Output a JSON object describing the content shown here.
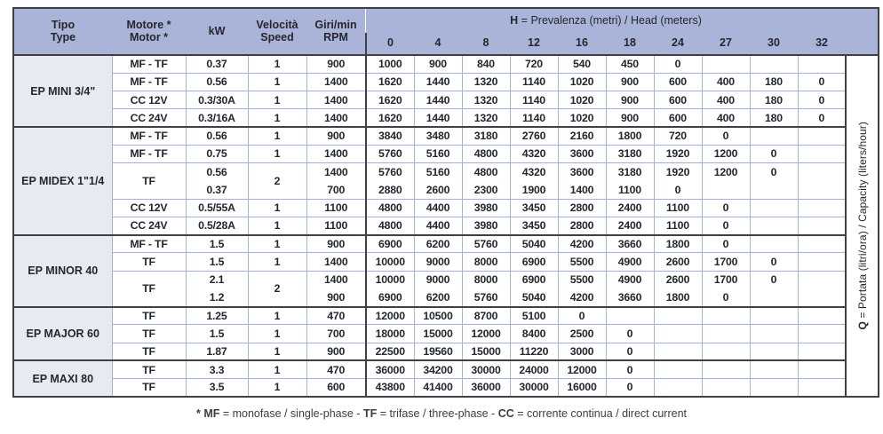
{
  "header": {
    "tipo": [
      "Tipo",
      "Type"
    ],
    "motore": [
      "Motore *",
      "Motor *"
    ],
    "kw": "kW",
    "velocita": [
      "Velocità",
      "Speed"
    ],
    "giri": [
      "Giri/min",
      "RPM"
    ],
    "h_bold": "H",
    "h_rest": " = Prevalenza (metri) / Head (meters)",
    "h_cols": [
      "0",
      "4",
      "8",
      "12",
      "16",
      "18",
      "24",
      "27",
      "30",
      "32"
    ]
  },
  "capacity_label": {
    "bold": "Q",
    "rest": " = Portata (litri/ora) / Capacity (liters/hour)"
  },
  "footnote": [
    {
      "text": "* MF",
      "bold": true
    },
    {
      "text": " = monofase / single-phase - ",
      "bold": false
    },
    {
      "text": "TF",
      "bold": true
    },
    {
      "text": " = trifase / three-phase - ",
      "bold": false
    },
    {
      "text": "CC",
      "bold": true
    },
    {
      "text": " = corrente continua / direct current",
      "bold": false
    }
  ],
  "colors": {
    "header_bg": "#a9b4d8",
    "type_bg": "#e9e9f2",
    "grid_light": "#a4b2d6",
    "grid_dark": "#3f3f48"
  },
  "sections": [
    {
      "name": "EP MINI 3/4\"",
      "rows": [
        {
          "motor": "MF - TF",
          "kw": "0.37",
          "speed": "1",
          "rpm": "900",
          "q": [
            "1000",
            "900",
            "840",
            "720",
            "540",
            "450",
            "0",
            "",
            "",
            ""
          ]
        },
        {
          "motor": "MF - TF",
          "kw": "0.56",
          "speed": "1",
          "rpm": "1400",
          "q": [
            "1620",
            "1440",
            "1320",
            "1140",
            "1020",
            "900",
            "600",
            "400",
            "180",
            "0"
          ]
        },
        {
          "motor": "CC 12V",
          "kw": "0.3/30A",
          "speed": "1",
          "rpm": "1400",
          "q": [
            "1620",
            "1440",
            "1320",
            "1140",
            "1020",
            "900",
            "600",
            "400",
            "180",
            "0"
          ]
        },
        {
          "motor": "CC 24V",
          "kw": "0.3/16A",
          "speed": "1",
          "rpm": "1400",
          "q": [
            "1620",
            "1440",
            "1320",
            "1140",
            "1020",
            "900",
            "600",
            "400",
            "180",
            "0"
          ]
        }
      ]
    },
    {
      "name": "EP MIDEX 1\"1/4",
      "rows": [
        {
          "motor": "MF - TF",
          "kw": "0.56",
          "speed": "1",
          "rpm": "900",
          "q": [
            "3840",
            "3480",
            "3180",
            "2760",
            "2160",
            "1800",
            "720",
            "0",
            "",
            ""
          ]
        },
        {
          "motor": "MF - TF",
          "kw": "0.75",
          "speed": "1",
          "rpm": "1400",
          "q": [
            "5760",
            "5160",
            "4800",
            "4320",
            "3600",
            "3180",
            "1920",
            "1200",
            "0",
            ""
          ]
        },
        {
          "motor": "TF",
          "speed": "2",
          "sub": [
            {
              "kw": "0.56",
              "rpm": "1400",
              "q": [
                "5760",
                "5160",
                "4800",
                "4320",
                "3600",
                "3180",
                "1920",
                "1200",
                "0",
                ""
              ]
            },
            {
              "kw": "0.37",
              "rpm": "700",
              "q": [
                "2880",
                "2600",
                "2300",
                "1900",
                "1400",
                "1100",
                "0",
                "",
                "",
                ""
              ]
            }
          ]
        },
        {
          "motor": "CC 12V",
          "kw": "0.5/55A",
          "speed": "1",
          "rpm": "1100",
          "q": [
            "4800",
            "4400",
            "3980",
            "3450",
            "2800",
            "2400",
            "1100",
            "0",
            "",
            ""
          ]
        },
        {
          "motor": "CC 24V",
          "kw": "0.5/28A",
          "speed": "1",
          "rpm": "1100",
          "q": [
            "4800",
            "4400",
            "3980",
            "3450",
            "2800",
            "2400",
            "1100",
            "0",
            "",
            ""
          ]
        }
      ]
    },
    {
      "name": "EP MINOR 40",
      "rows": [
        {
          "motor": "MF - TF",
          "kw": "1.5",
          "speed": "1",
          "rpm": "900",
          "q": [
            "6900",
            "6200",
            "5760",
            "5040",
            "4200",
            "3660",
            "1800",
            "0",
            "",
            ""
          ]
        },
        {
          "motor": "TF",
          "kw": "1.5",
          "speed": "1",
          "rpm": "1400",
          "q": [
            "10000",
            "9000",
            "8000",
            "6900",
            "5500",
            "4900",
            "2600",
            "1700",
            "0",
            ""
          ]
        },
        {
          "motor": "TF",
          "speed": "2",
          "sub": [
            {
              "kw": "2.1",
              "rpm": "1400",
              "q": [
                "10000",
                "9000",
                "8000",
                "6900",
                "5500",
                "4900",
                "2600",
                "1700",
                "0",
                ""
              ]
            },
            {
              "kw": "1.2",
              "rpm": "900",
              "q": [
                "6900",
                "6200",
                "5760",
                "5040",
                "4200",
                "3660",
                "1800",
                "0",
                "",
                ""
              ]
            }
          ]
        }
      ]
    },
    {
      "name": "EP MAJOR 60",
      "rows": [
        {
          "motor": "TF",
          "kw": "1.25",
          "speed": "1",
          "rpm": "470",
          "q": [
            "12000",
            "10500",
            "8700",
            "5100",
            "0",
            "",
            "",
            "",
            "",
            ""
          ]
        },
        {
          "motor": "TF",
          "kw": "1.5",
          "speed": "1",
          "rpm": "700",
          "q": [
            "18000",
            "15000",
            "12000",
            "8400",
            "2500",
            "0",
            "",
            "",
            "",
            ""
          ]
        },
        {
          "motor": "TF",
          "kw": "1.87",
          "speed": "1",
          "rpm": "900",
          "q": [
            "22500",
            "19560",
            "15000",
            "11220",
            "3000",
            "0",
            "",
            "",
            "",
            ""
          ]
        }
      ]
    },
    {
      "name": "EP MAXI 80",
      "rows": [
        {
          "motor": "TF",
          "kw": "3.3",
          "speed": "1",
          "rpm": "470",
          "q": [
            "36000",
            "34200",
            "30000",
            "24000",
            "12000",
            "0",
            "",
            "",
            "",
            ""
          ]
        },
        {
          "motor": "TF",
          "kw": "3.5",
          "speed": "1",
          "rpm": "600",
          "q": [
            "43800",
            "41400",
            "36000",
            "30000",
            "16000",
            "0",
            "",
            "",
            "",
            ""
          ]
        }
      ]
    }
  ]
}
